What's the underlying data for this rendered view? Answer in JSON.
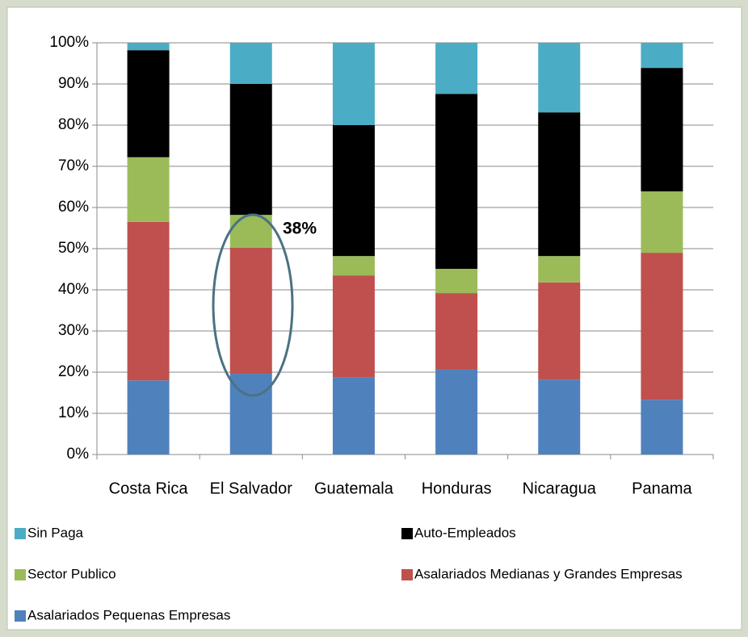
{
  "chart_data": {
    "type": "stacked_bar",
    "categories": [
      "Costa Rica",
      "El Salvador",
      "Guatemala",
      "Honduras",
      "Nicaragua",
      "Panama"
    ],
    "series": [
      {
        "name": "Asalariados Pequenas Empresas",
        "color": "#4f81bd",
        "values": [
          18,
          19.6,
          18.8,
          20.6,
          18.2,
          13.3
        ]
      },
      {
        "name": "Asalariados Medianas y Grandes Empresas",
        "color": "#c0504d",
        "values": [
          38.5,
          30.6,
          24.7,
          18.6,
          23.6,
          35.7
        ]
      },
      {
        "name": "Sector Publico",
        "color": "#9bbb59",
        "values": [
          15.7,
          8,
          4.7,
          5.9,
          6.4,
          14.9
        ]
      },
      {
        "name": "Auto-Empleados",
        "color": "#000000",
        "values": [
          26,
          31.8,
          31.8,
          42.5,
          34.9,
          30
        ]
      },
      {
        "name": "Sin Paga",
        "color": "#4bacc6",
        "values": [
          1.8,
          10,
          20,
          12.4,
          16.9,
          6.1
        ]
      }
    ],
    "ylim": [
      0,
      100
    ],
    "yticks": [
      {
        "value": 0,
        "label": "0%"
      },
      {
        "value": 10,
        "label": "10%"
      },
      {
        "value": 20,
        "label": "20%"
      },
      {
        "value": 30,
        "label": "30%"
      },
      {
        "value": 40,
        "label": "40%"
      },
      {
        "value": 50,
        "label": "50%"
      },
      {
        "value": 60,
        "label": "60%"
      },
      {
        "value": 70,
        "label": "70%"
      },
      {
        "value": 80,
        "label": "80%"
      },
      {
        "value": 90,
        "label": "90%"
      },
      {
        "value": 100,
        "label": "100%"
      }
    ],
    "grid": true,
    "annotation": "38%"
  }
}
